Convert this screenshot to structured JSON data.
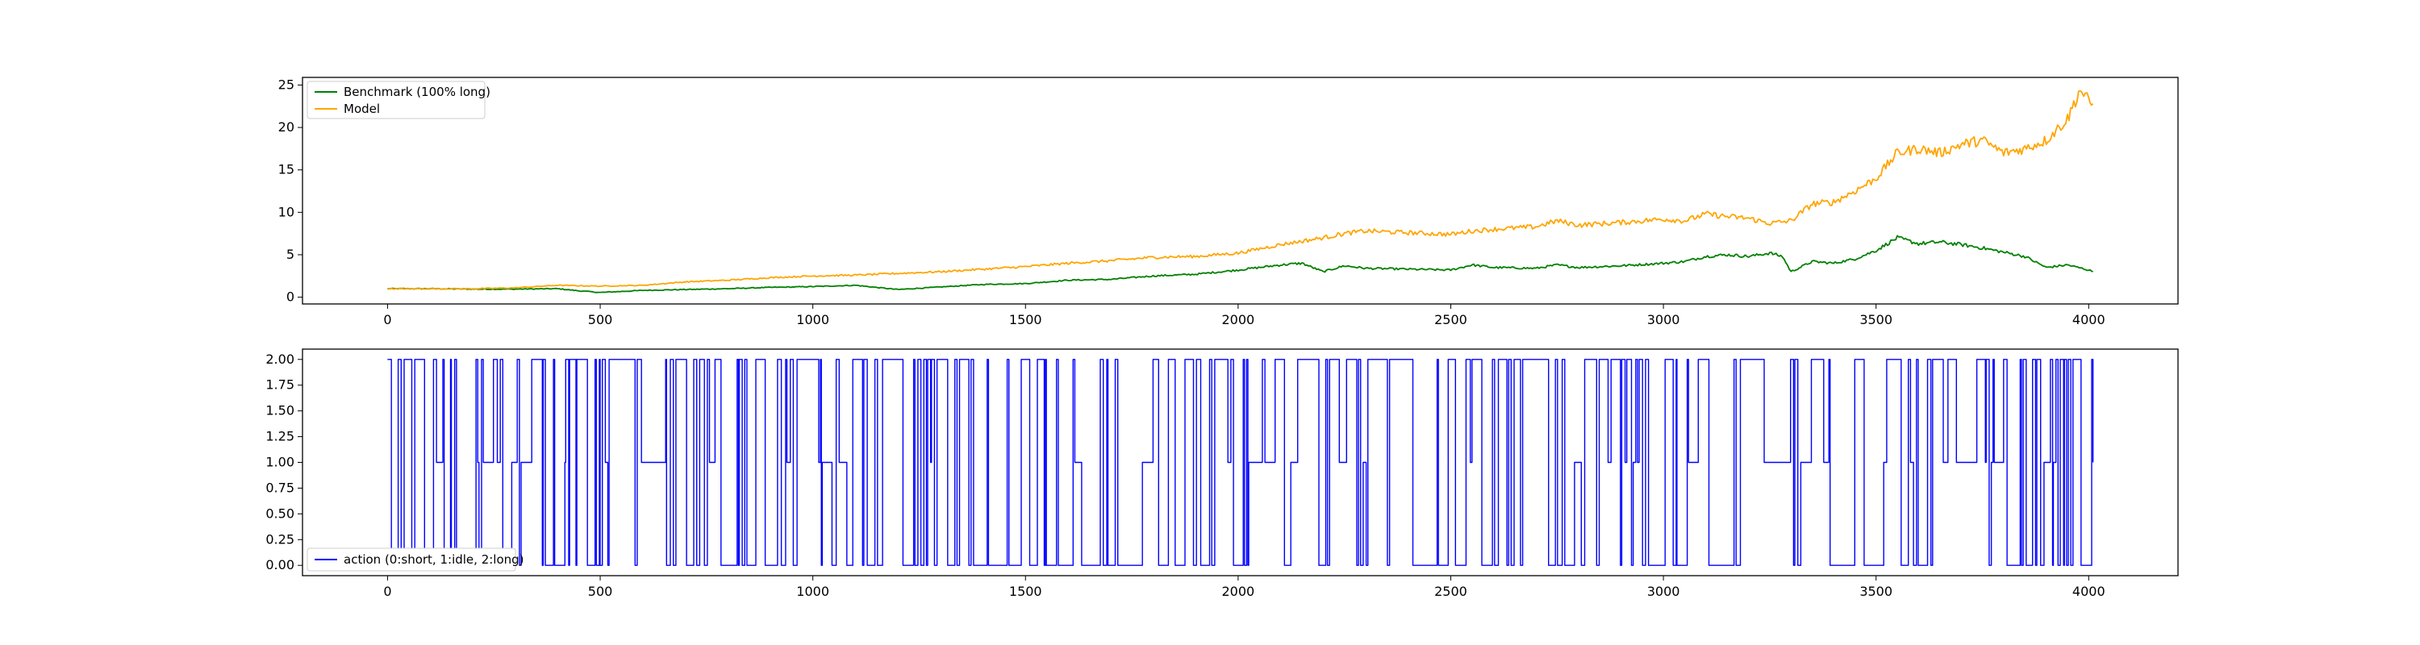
{
  "chart_data": [
    {
      "type": "line",
      "title": "",
      "xlabel": "",
      "ylabel": "",
      "xlim": [
        -200,
        4210
      ],
      "ylim": [
        -0.8,
        25.9
      ],
      "xticks": [
        0,
        500,
        1000,
        1500,
        2000,
        2500,
        3000,
        3500,
        4000
      ],
      "yticks": [
        0,
        5,
        10,
        15,
        20,
        25
      ],
      "grid": false,
      "legend_position": "top-left",
      "series": [
        {
          "name": "Benchmark (100% long)",
          "color": "#008000",
          "points": [
            [
              0,
              1.0
            ],
            [
              100,
              1.0
            ],
            [
              200,
              0.95
            ],
            [
              300,
              0.95
            ],
            [
              400,
              1.0
            ],
            [
              450,
              0.75
            ],
            [
              500,
              0.55
            ],
            [
              600,
              0.8
            ],
            [
              700,
              0.9
            ],
            [
              800,
              1.0
            ],
            [
              900,
              1.15
            ],
            [
              1000,
              1.25
            ],
            [
              1100,
              1.4
            ],
            [
              1200,
              0.9
            ],
            [
              1300,
              1.2
            ],
            [
              1400,
              1.5
            ],
            [
              1500,
              1.6
            ],
            [
              1600,
              2.0
            ],
            [
              1700,
              2.1
            ],
            [
              1800,
              2.5
            ],
            [
              1900,
              2.7
            ],
            [
              2000,
              3.2
            ],
            [
              2100,
              3.8
            ],
            [
              2150,
              4.0
            ],
            [
              2200,
              3.0
            ],
            [
              2250,
              3.7
            ],
            [
              2300,
              3.4
            ],
            [
              2400,
              3.3
            ],
            [
              2500,
              3.2
            ],
            [
              2550,
              3.8
            ],
            [
              2600,
              3.5
            ],
            [
              2700,
              3.4
            ],
            [
              2750,
              3.8
            ],
            [
              2800,
              3.5
            ],
            [
              2900,
              3.7
            ],
            [
              3000,
              4.0
            ],
            [
              3050,
              4.2
            ],
            [
              3100,
              4.8
            ],
            [
              3150,
              5.0
            ],
            [
              3200,
              4.8
            ],
            [
              3250,
              5.2
            ],
            [
              3280,
              4.8
            ],
            [
              3300,
              3.0
            ],
            [
              3350,
              4.2
            ],
            [
              3400,
              4.0
            ],
            [
              3450,
              4.5
            ],
            [
              3500,
              5.5
            ],
            [
              3550,
              7.0
            ],
            [
              3600,
              6.3
            ],
            [
              3650,
              6.5
            ],
            [
              3700,
              6.2
            ],
            [
              3750,
              5.8
            ],
            [
              3800,
              5.3
            ],
            [
              3850,
              4.8
            ],
            [
              3900,
              3.5
            ],
            [
              3950,
              3.8
            ],
            [
              4000,
              3.2
            ],
            [
              4010,
              3.0
            ]
          ]
        },
        {
          "name": "Model",
          "color": "#FFA500",
          "points": [
            [
              0,
              1.0
            ],
            [
              100,
              1.0
            ],
            [
              200,
              1.0
            ],
            [
              300,
              1.1
            ],
            [
              400,
              1.4
            ],
            [
              500,
              1.3
            ],
            [
              600,
              1.4
            ],
            [
              700,
              1.8
            ],
            [
              800,
              2.0
            ],
            [
              900,
              2.3
            ],
            [
              1000,
              2.5
            ],
            [
              1100,
              2.6
            ],
            [
              1200,
              2.8
            ],
            [
              1300,
              3.0
            ],
            [
              1400,
              3.3
            ],
            [
              1500,
              3.6
            ],
            [
              1600,
              4.0
            ],
            [
              1700,
              4.3
            ],
            [
              1800,
              4.7
            ],
            [
              1900,
              4.8
            ],
            [
              2000,
              5.2
            ],
            [
              2100,
              6.2
            ],
            [
              2200,
              7.0
            ],
            [
              2250,
              7.5
            ],
            [
              2300,
              7.8
            ],
            [
              2400,
              7.6
            ],
            [
              2500,
              7.4
            ],
            [
              2550,
              7.8
            ],
            [
              2600,
              8.0
            ],
            [
              2700,
              8.3
            ],
            [
              2750,
              9.0
            ],
            [
              2800,
              8.5
            ],
            [
              2900,
              8.8
            ],
            [
              3000,
              9.2
            ],
            [
              3050,
              9.0
            ],
            [
              3100,
              9.8
            ],
            [
              3150,
              9.5
            ],
            [
              3200,
              9.3
            ],
            [
              3250,
              8.7
            ],
            [
              3300,
              9.0
            ],
            [
              3350,
              11.0
            ],
            [
              3400,
              11.2
            ],
            [
              3450,
              12.5
            ],
            [
              3500,
              14.0
            ],
            [
              3550,
              17.0
            ],
            [
              3600,
              17.5
            ],
            [
              3650,
              17.0
            ],
            [
              3700,
              18.0
            ],
            [
              3750,
              18.5
            ],
            [
              3800,
              17.0
            ],
            [
              3850,
              17.5
            ],
            [
              3900,
              18.5
            ],
            [
              3950,
              21.0
            ],
            [
              3980,
              24.5
            ],
            [
              4000,
              23.0
            ],
            [
              4010,
              22.8
            ]
          ]
        }
      ]
    },
    {
      "type": "line",
      "title": "",
      "xlabel": "",
      "ylabel": "",
      "xlim": [
        -200,
        4210
      ],
      "ylim": [
        -0.1,
        2.1
      ],
      "xticks": [
        0,
        500,
        1000,
        1500,
        2000,
        2500,
        3000,
        3500,
        4000
      ],
      "yticks": [
        "0.00",
        "0.25",
        "0.50",
        "0.75",
        "1.00",
        "1.25",
        "1.50",
        "1.75",
        "2.00"
      ],
      "grid": false,
      "legend_position": "bottom-left",
      "step": true,
      "series": [
        {
          "name": "action (0:short, 1:idle, 2:long)",
          "color": "#0000FF",
          "x_range": [
            0,
            4010
          ],
          "levels": [
            0,
            1,
            2
          ],
          "note_data": "discrete action signal switching frequently between 0, 1 and 2"
        }
      ]
    }
  ]
}
